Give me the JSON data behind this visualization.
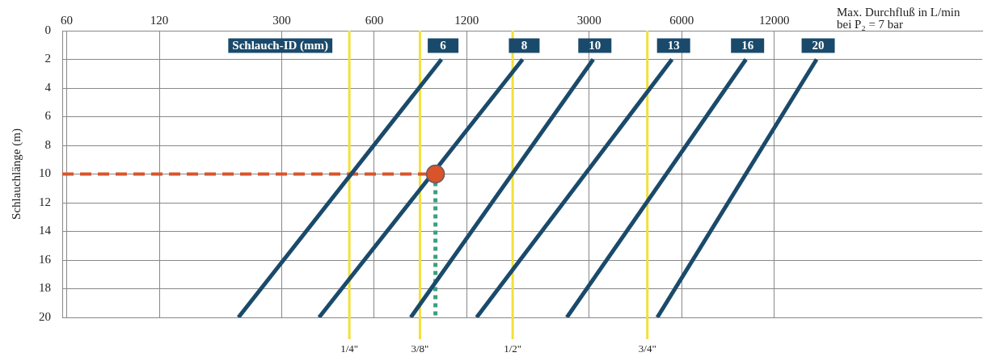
{
  "chart_data": {
    "type": "line",
    "xlabel": "Max. Durchfluß in L/min\nbei P₂ = 7 bar",
    "ylabel": "Schlauchlänge (m)",
    "legend_title": "Schlauch-ID (mm)",
    "log": "x",
    "grid": true,
    "marker": "none",
    "xlim": [
      58,
      57000
    ],
    "xticks": [
      60,
      120,
      300,
      600,
      1200,
      3000,
      6000,
      12000
    ],
    "ylim": [
      20,
      0
    ],
    "yticks": [
      0,
      2,
      4,
      6,
      8,
      10,
      12,
      14,
      16,
      18,
      20
    ],
    "series": [
      {
        "name": "6",
        "color": "#1a4a6b",
        "x": [
          217,
          993
        ],
        "values": [
          20,
          2
        ]
      },
      {
        "name": "8",
        "color": "#1a4a6b",
        "x": [
          397,
          1823
        ],
        "values": [
          20,
          2
        ]
      },
      {
        "name": "10",
        "color": "#1a4a6b",
        "x": [
          789,
          3094
        ],
        "values": [
          20,
          2
        ]
      },
      {
        "name": "13",
        "color": "#1a4a6b",
        "x": [
          1292,
          5580
        ],
        "values": [
          20,
          2
        ]
      },
      {
        "name": "16",
        "color": "#1a4a6b",
        "x": [
          2540,
          9710
        ],
        "values": [
          20,
          2
        ]
      },
      {
        "name": "20",
        "color": "#1a4a6b",
        "x": [
          5000,
          16480
        ],
        "values": [
          20,
          2
        ]
      },
      {
        "type": "line",
        "color": "#d9542b",
        "line_style": "dashed",
        "x": [
          58,
          949
        ],
        "values": [
          10,
          10
        ]
      },
      {
        "type": "line",
        "color": "#3aa07a",
        "line_style": "dotted",
        "x": [
          949,
          949
        ],
        "values": [
          10,
          20
        ]
      },
      {
        "type": "scatter",
        "color": "#d9542b",
        "marker": "circle",
        "x": [
          949
        ],
        "values": [
          10
        ]
      }
    ],
    "ref_lines": [
      {
        "axis": "x",
        "value": 498,
        "color": "#f2e03a"
      },
      {
        "axis": "x",
        "value": 845,
        "color": "#f2e03a"
      },
      {
        "axis": "x",
        "value": 1692,
        "color": "#f2e03a"
      },
      {
        "axis": "x",
        "value": 4640,
        "color": "#f2e03a"
      }
    ],
    "annotations": [
      "1/4\"",
      "3/8\"",
      "1/2\"",
      "3/4\""
    ]
  }
}
